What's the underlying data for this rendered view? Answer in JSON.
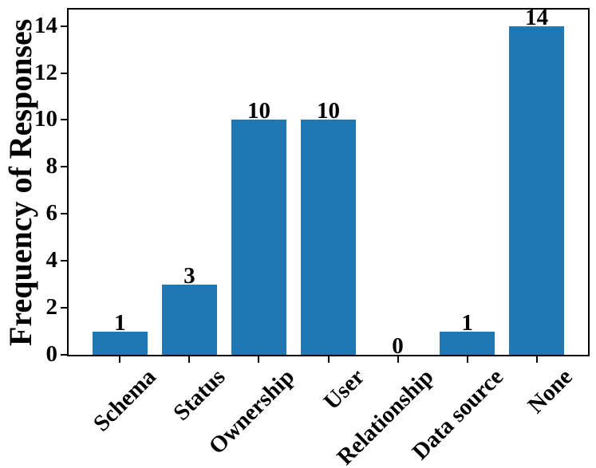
{
  "figure": {
    "background": "#ffffff"
  },
  "chart_data": {
    "type": "bar",
    "title": "",
    "xlabel": "",
    "ylabel": "Frequency of Responses",
    "categories": [
      "Schema",
      "Status",
      "Ownership",
      "User",
      "Relationship",
      "Data source",
      "None"
    ],
    "values": [
      1,
      3,
      10,
      10,
      0,
      1,
      14
    ],
    "bar_value_labels": [
      "1",
      "3",
      "10",
      "10",
      "0",
      "1",
      "14"
    ],
    "yticks": [
      0,
      2,
      4,
      6,
      8,
      10,
      12,
      14
    ],
    "ylim": [
      0,
      14.7
    ],
    "x_tick_rotation_deg": 45,
    "grid": false,
    "legend": "none",
    "bar_color": "#1f77b4",
    "axis_color": "#000000",
    "text_color": "#000000"
  }
}
